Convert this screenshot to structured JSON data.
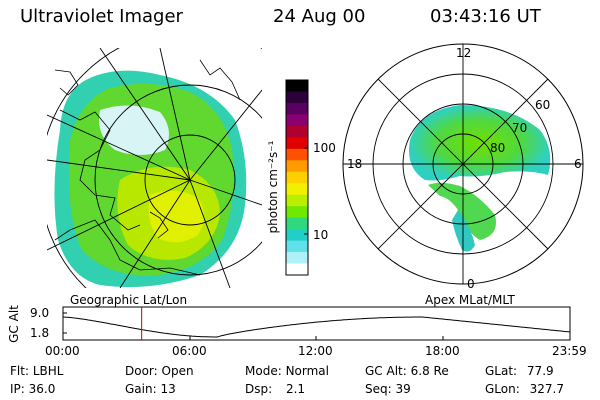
{
  "header": {
    "title": "Ultraviolet Imager",
    "date": "24 Aug 00",
    "time": "03:43:16 UT"
  },
  "colorbar": {
    "unit_label": "photon cm⁻²s⁻¹",
    "ticks": [
      {
        "label": "100",
        "value": 100
      },
      {
        "label": "10",
        "value": 10
      }
    ],
    "colors": [
      "#000000",
      "#2a0038",
      "#5a0060",
      "#8a0070",
      "#b00030",
      "#e00000",
      "#ff5000",
      "#ff9a00",
      "#ffd000",
      "#f0f000",
      "#b8f000",
      "#70e800",
      "#30d880",
      "#20d0c8",
      "#60e0e8",
      "#b0f0f8",
      "#ffffff"
    ]
  },
  "panels": {
    "left_label": "Geographic Lat/Lon",
    "right_label": "Apex MLat/MLT",
    "polar_lt_labels": {
      "top": "12",
      "left": "18",
      "right": "6",
      "bottom": "0"
    },
    "polar_lat_labels": [
      "60",
      "70",
      "80"
    ]
  },
  "altitude_plot": {
    "ylabel": "GC Alt",
    "yticks": [
      "9.0",
      "1.8"
    ],
    "xticks": [
      "00:00",
      "06:00",
      "12:00",
      "18:00",
      "23:59"
    ],
    "current_time_hours": 3.72
  },
  "info": {
    "row1": [
      {
        "label": "Flt:",
        "value": "LBHL"
      },
      {
        "label": "Door:",
        "value": "Open"
      },
      {
        "label": "Mode:",
        "value": "Normal"
      },
      {
        "label": "GC Alt:",
        "value": "6.8 Re"
      },
      {
        "label": "GLat:",
        "value": "77.9"
      }
    ],
    "row2": [
      {
        "label": "IP:",
        "value": "36.0"
      },
      {
        "label": "Gain:",
        "value": "13"
      },
      {
        "label": "Dsp:",
        "value": "2.1"
      },
      {
        "label": "Seq:",
        "value": "39"
      },
      {
        "label": "GLon:",
        "value": "327.7"
      }
    ]
  }
}
